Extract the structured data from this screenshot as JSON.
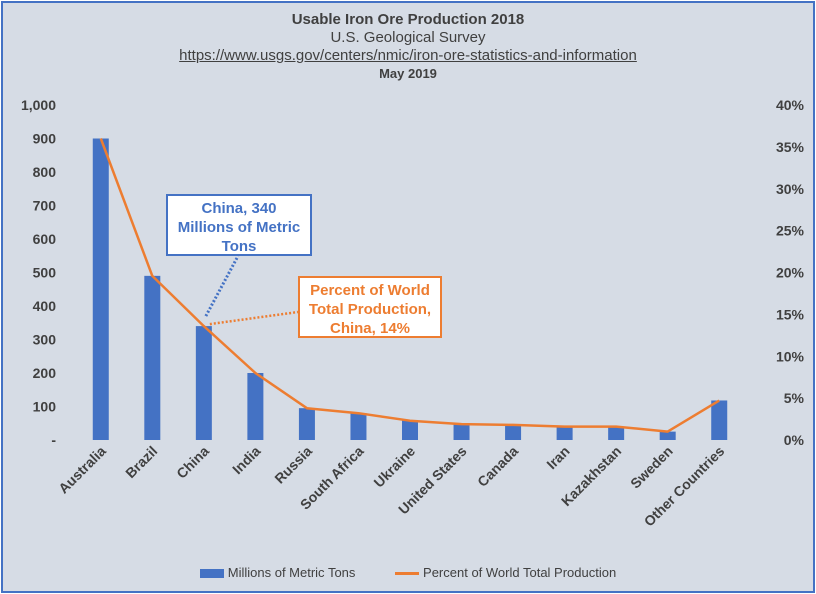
{
  "chart_data": {
    "type": "bar",
    "title": "Usable Iron Ore Production 2018",
    "subtitle": "U.S. Geological Survey",
    "source_url": "https://www.usgs.gov/centers/nmic/iron-ore-statistics-and-information",
    "date": "May 2019",
    "categories": [
      "Australia",
      "Brazil",
      "China",
      "India",
      "Russia",
      "South Africa",
      "Ukraine",
      "United States",
      "Canada",
      "Iran",
      "Kazakhstan",
      "Sweden",
      "Other Countries"
    ],
    "series": [
      {
        "name": "Millions of Metric Tons",
        "type": "bar",
        "axis": "left",
        "color": "#4472c4",
        "values": [
          900,
          490,
          340,
          200,
          95,
          80,
          58,
          48,
          46,
          40,
          40,
          25,
          118
        ]
      },
      {
        "name": "Percent of World Total Production",
        "type": "line",
        "axis": "right",
        "color": "#ed7d31",
        "values": [
          36,
          19.6,
          13.6,
          8,
          3.8,
          3.2,
          2.3,
          1.9,
          1.8,
          1.6,
          1.6,
          1,
          4.7
        ]
      }
    ],
    "y_left": {
      "min": 0,
      "max": 1000,
      "step": 100,
      "ticks": [
        "-",
        "100",
        "200",
        "300",
        "400",
        "500",
        "600",
        "700",
        "800",
        "900",
        "1,000"
      ]
    },
    "y_right": {
      "min": 0,
      "max": 40,
      "step": 5,
      "ticks": [
        "0%",
        "5%",
        "10%",
        "15%",
        "20%",
        "25%",
        "30%",
        "35%",
        "40%"
      ]
    },
    "grid": false,
    "legend_position": "bottom",
    "annotations": [
      {
        "name": "china-tons-callout",
        "text": "China,  340 Millions of Metric Tons",
        "lines": [
          "China,  340",
          "Millions of Metric",
          "Tons"
        ],
        "category": "China",
        "series": "Millions of Metric Tons",
        "color": "#4472c4"
      },
      {
        "name": "china-percent-callout",
        "text": "Percent of World Total Production, China, 14%",
        "lines": [
          "Percent of World",
          "Total Production,",
          "China, 14%"
        ],
        "category": "China",
        "series": "Percent of World Total Production",
        "color": "#ed7d31"
      }
    ]
  }
}
